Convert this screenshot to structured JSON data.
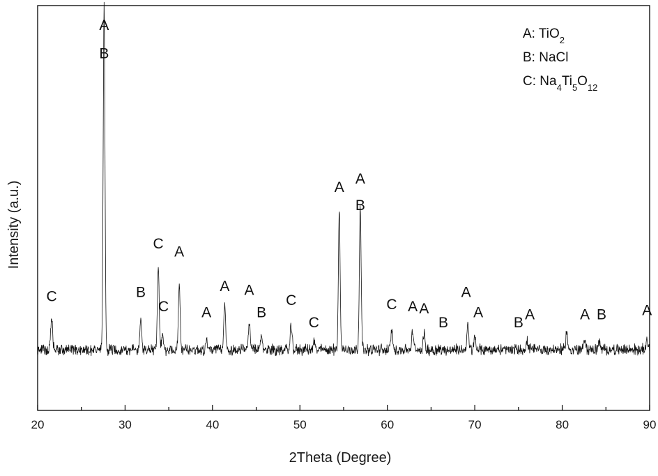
{
  "chart_data": {
    "type": "line",
    "xlabel": "2Theta (Degree)",
    "ylabel": "Intensity (a.u.)",
    "xlim": [
      20,
      90
    ],
    "ylim": [
      0,
      100
    ],
    "x_ticks": [
      "20",
      "30",
      "40",
      "50",
      "60",
      "70",
      "80",
      "90"
    ],
    "grid": false,
    "legend_position": "top-right",
    "legend": [
      {
        "code": "A:",
        "base": "TiO",
        "sub": "2"
      },
      {
        "code": "B:",
        "base": "NaCl",
        "sub": ""
      },
      {
        "code": "C:",
        "base": "Na4Ti5O12",
        "parts": [
          {
            "t": "Na",
            "sub": false
          },
          {
            "t": "4",
            "sub": true
          },
          {
            "t": "Ti",
            "sub": false
          },
          {
            "t": "5",
            "sub": true
          },
          {
            "t": "O",
            "sub": false
          },
          {
            "t": "12",
            "sub": true
          }
        ]
      }
    ],
    "baseline": 15,
    "series": [
      {
        "peaks": [
          {
            "x": 21.6,
            "y": 23
          },
          {
            "x": 27.6,
            "y": 100
          },
          {
            "x": 31.8,
            "y": 22
          },
          {
            "x": 33.8,
            "y": 35
          },
          {
            "x": 34.3,
            "y": 19
          },
          {
            "x": 36.2,
            "y": 31
          },
          {
            "x": 39.3,
            "y": 17.5
          },
          {
            "x": 41.4,
            "y": 26
          },
          {
            "x": 44.2,
            "y": 22
          },
          {
            "x": 45.6,
            "y": 18.5
          },
          {
            "x": 49.0,
            "y": 21
          },
          {
            "x": 51.6,
            "y": 17
          },
          {
            "x": 54.5,
            "y": 49
          },
          {
            "x": 56.9,
            "y": 51
          },
          {
            "x": 60.5,
            "y": 20
          },
          {
            "x": 62.9,
            "y": 19.5
          },
          {
            "x": 64.2,
            "y": 19
          },
          {
            "x": 69.2,
            "y": 21
          },
          {
            "x": 70.0,
            "y": 18
          },
          {
            "x": 76.0,
            "y": 17
          },
          {
            "x": 80.5,
            "y": 19.5
          },
          {
            "x": 82.6,
            "y": 18
          },
          {
            "x": 84.2,
            "y": 17
          },
          {
            "x": 89.7,
            "y": 18
          }
        ]
      }
    ],
    "annotations": [
      {
        "x": 27.6,
        "y": 94,
        "text": "A"
      },
      {
        "x": 27.6,
        "y": 87,
        "text": "B"
      },
      {
        "x": 21.6,
        "y": 27,
        "text": "C"
      },
      {
        "x": 31.8,
        "y": 28,
        "text": "B"
      },
      {
        "x": 33.8,
        "y": 40,
        "text": "C"
      },
      {
        "x": 34.4,
        "y": 24.5,
        "text": "C"
      },
      {
        "x": 36.2,
        "y": 38,
        "text": "A"
      },
      {
        "x": 39.3,
        "y": 23,
        "text": "A"
      },
      {
        "x": 41.4,
        "y": 29.5,
        "text": "A"
      },
      {
        "x": 44.2,
        "y": 28.5,
        "text": "A"
      },
      {
        "x": 45.6,
        "y": 23,
        "text": "B"
      },
      {
        "x": 49.0,
        "y": 26,
        "text": "C"
      },
      {
        "x": 51.6,
        "y": 20.5,
        "text": "C"
      },
      {
        "x": 54.5,
        "y": 54,
        "text": "A"
      },
      {
        "x": 56.9,
        "y": 56,
        "text": "A"
      },
      {
        "x": 56.9,
        "y": 49.5,
        "text": "B"
      },
      {
        "x": 60.5,
        "y": 25,
        "text": "C"
      },
      {
        "x": 62.9,
        "y": 24.5,
        "text": "A"
      },
      {
        "x": 64.2,
        "y": 24,
        "text": "A"
      },
      {
        "x": 66.4,
        "y": 20.5,
        "text": "B"
      },
      {
        "x": 69.0,
        "y": 28,
        "text": "A"
      },
      {
        "x": 70.4,
        "y": 23,
        "text": "A"
      },
      {
        "x": 75.0,
        "y": 20.5,
        "text": "B"
      },
      {
        "x": 76.3,
        "y": 22.5,
        "text": "A"
      },
      {
        "x": 82.6,
        "y": 22.5,
        "text": "A"
      },
      {
        "x": 84.5,
        "y": 22.5,
        "text": "B"
      },
      {
        "x": 89.7,
        "y": 23.5,
        "text": "A"
      }
    ]
  }
}
